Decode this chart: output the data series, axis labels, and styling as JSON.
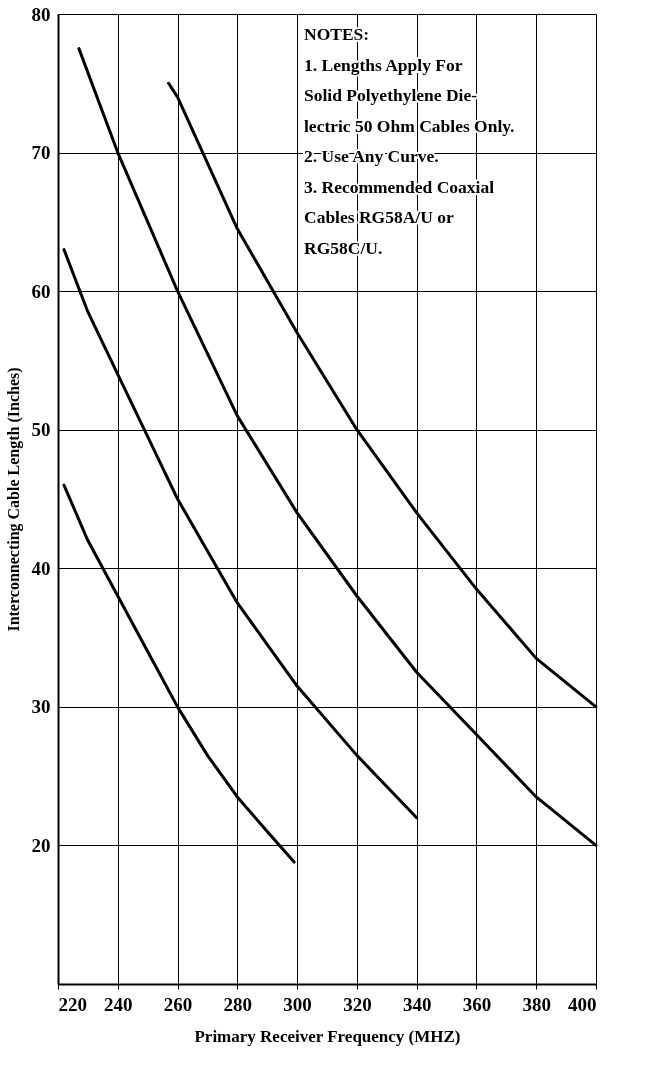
{
  "chart_data": {
    "type": "line",
    "xlabel": "Primary Receiver Frequency (MHZ)",
    "ylabel": "Interconnecting Cable Length (Inches)",
    "xlim": [
      220,
      400
    ],
    "xticks": [
      220,
      240,
      260,
      280,
      300,
      320,
      340,
      360,
      380,
      400
    ],
    "ylim": [
      10,
      80
    ],
    "yticks": [
      {
        "value": 10,
        "label": null
      },
      20,
      30,
      40,
      50,
      60,
      70,
      80
    ],
    "grid": true,
    "legend": false,
    "marker": "none",
    "line_style": "solid",
    "series": [
      {
        "color": "#000000",
        "x": [
          222,
          230,
          240,
          250,
          260,
          270,
          280,
          290,
          299
        ],
        "values": [
          46,
          42,
          38,
          34,
          30,
          26.5,
          23.5,
          21,
          18.8
        ]
      },
      {
        "color": "#000000",
        "x": [
          222,
          230,
          240,
          250,
          260,
          280,
          300,
          320,
          340
        ],
        "values": [
          63,
          58.5,
          54,
          49.5,
          45,
          37.5,
          31.5,
          26.5,
          22
        ]
      },
      {
        "color": "#000000",
        "x": [
          227,
          240,
          250,
          260,
          280,
          300,
          320,
          340,
          360,
          380,
          400
        ],
        "values": [
          77.5,
          70,
          65,
          60,
          51,
          44,
          38,
          32.5,
          28,
          23.5,
          20
        ]
      },
      {
        "color": "#000000",
        "x": [
          257,
          260,
          280,
          300,
          320,
          340,
          360,
          380,
          400
        ],
        "values": [
          75,
          74,
          64.5,
          57,
          50,
          44,
          38.5,
          33.5,
          30
        ]
      }
    ],
    "annotations": [
      "NOTES:",
      "1.  Lengths Apply For",
      "Solid Polyethylene Die-",
      "lectric 50 Ohm Cables Only.",
      "2.  Use Any Curve.",
      "3.  Recommended Coaxial",
      "Cables RG58A/U or",
      "RG58C/U."
    ]
  }
}
